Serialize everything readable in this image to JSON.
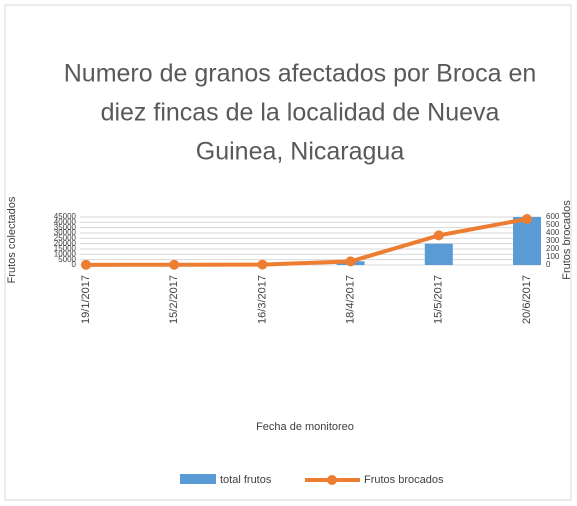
{
  "chart_data": {
    "type": "bar-line",
    "title": [
      "Numero de granos afectados por Broca en",
      "diez fincas de la localidad de Nueva",
      "Guinea,  Nicaragua"
    ],
    "categories": [
      "19/1/2017",
      "15/2/2017",
      "16/3/2017",
      "18/4/2017",
      "15/5/2017",
      "20/6/2017"
    ],
    "series": [
      {
        "name": "total frutos",
        "type": "bar",
        "color": "#5b9bd5",
        "axis": "y",
        "values": [
          0,
          0,
          0,
          3500,
          20000,
          45000
        ]
      },
      {
        "name": "Frutos brocados",
        "type": "line",
        "color": "#ed7d31",
        "axis": "y2",
        "values": [
          2,
          3,
          5,
          45,
          370,
          575
        ]
      }
    ],
    "xlabel": "Fecha de monitoreo",
    "ylabel": "Frutos colectados",
    "y2label": "Frutos brocados",
    "ylim": [
      0,
      45000
    ],
    "yticks": [
      0,
      5000,
      10000,
      15000,
      20000,
      25000,
      30000,
      35000,
      40000,
      45000
    ],
    "y2lim": [
      0,
      600
    ],
    "y2ticks": [
      0,
      100,
      200,
      300,
      400,
      500,
      600
    ],
    "grid": true,
    "legend": "bottom"
  }
}
